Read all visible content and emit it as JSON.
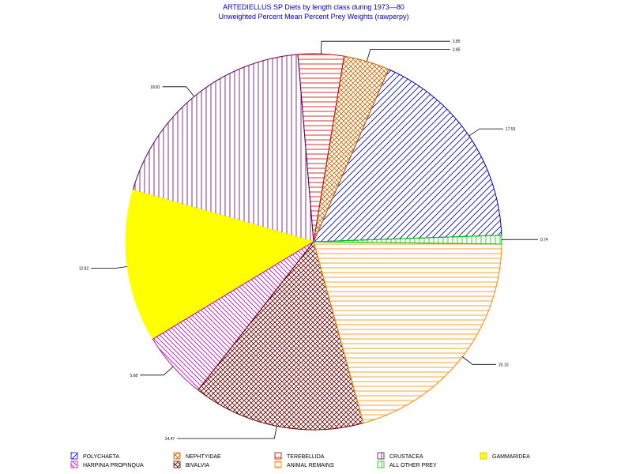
{
  "chart_data": {
    "type": "pie",
    "title": "ARTEDIELLUS SP  Diets by length class during  1973—80",
    "subtitle": "Unweighted Percent Mean Percent Prey  Weights (rawperpy)",
    "slices": [
      {
        "name": "POLYCHAETA",
        "label": "17.53",
        "value": 17.53,
        "color": "#0000cc",
        "pattern": "diag-up"
      },
      {
        "name": "NEPHTYIDAE",
        "label": "3.85",
        "value": 3.85,
        "color": "#cc6600",
        "pattern": "cross"
      },
      {
        "name": "TEREBELLIDA",
        "label": "3.85",
        "value": 3.85,
        "color": "#cc0000",
        "pattern": "horizontal"
      },
      {
        "name": "CRUSTACEA",
        "label": "18.81",
        "value": 18.81,
        "color": "#660066",
        "pattern": "vertical"
      },
      {
        "name": "GAMMARIDEA",
        "label": "12.82",
        "value": 12.82,
        "color": "#ffff00",
        "pattern": "solid"
      },
      {
        "name": "HARPINIA PROPINQUA",
        "label": "5.68",
        "value": 5.68,
        "color": "#cc00cc",
        "pattern": "diag-down"
      },
      {
        "name": "BIVALVIA",
        "label": "14.47",
        "value": 14.47,
        "color": "#660000",
        "pattern": "cross"
      },
      {
        "name": "ANIMAL REMAINS",
        "label": "20.10",
        "value": 20.1,
        "color": "#ff8800",
        "pattern": "horizontal"
      },
      {
        "name": "ALL OTHER PREY",
        "label": "0.74",
        "value": 0.74,
        "color": "#00cc00",
        "pattern": "vertical"
      }
    ],
    "legend": [
      {
        "name": "POLYCHAETA",
        "color": "#0000cc",
        "pattern": "diag-up"
      },
      {
        "name": "NEPHTYIDAE",
        "color": "#cc6600",
        "pattern": "cross"
      },
      {
        "name": "TEREBELLIDA",
        "color": "#cc0000",
        "pattern": "horizontal"
      },
      {
        "name": "CRUSTACEA",
        "color": "#660066",
        "pattern": "vertical"
      },
      {
        "name": "GAMMARIDEA",
        "color": "#ffff00",
        "pattern": "solid"
      },
      {
        "name": "HARPINIA PROPINQUA",
        "color": "#cc00cc",
        "pattern": "diag-down"
      },
      {
        "name": "BIVALVIA",
        "color": "#660000",
        "pattern": "cross"
      },
      {
        "name": "ANIMAL REMAINS",
        "color": "#ff8800",
        "pattern": "horizontal"
      },
      {
        "name": "ALL OTHER PREY",
        "color": "#00cc00",
        "pattern": "vertical"
      }
    ],
    "legend_position": "bottom"
  }
}
